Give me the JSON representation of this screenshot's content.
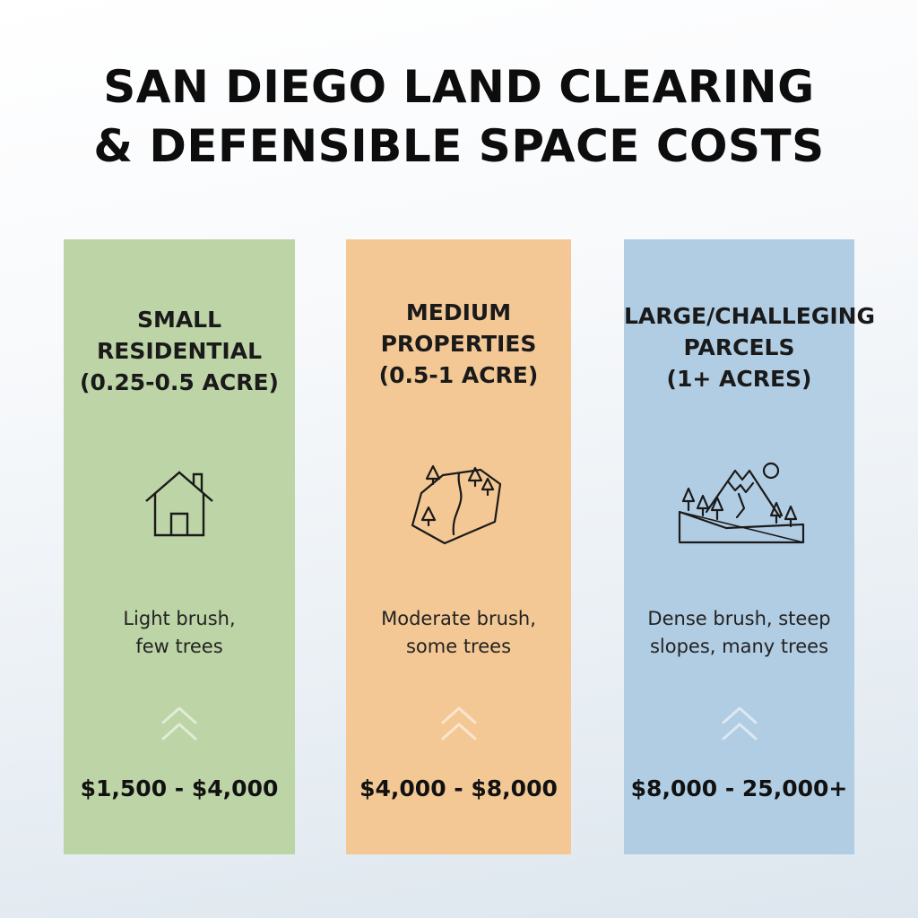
{
  "title": {
    "line1": "SAN DIEGO LAND CLEARING",
    "line2": "& DEFENSIBLE SPACE COSTS"
  },
  "colors": {
    "small_card": "#bdd4a6",
    "medium_card": "#f3c895",
    "large_card": "#b1cde3"
  },
  "tiers": [
    {
      "heading_lines": [
        "SMALL",
        "RESIDENTIAL"
      ],
      "range": "(0.25-0.5 ACRE)",
      "icon": "house-icon",
      "description_lines": [
        "Light brush,",
        "few trees"
      ],
      "price": "$1,500 - $4,000"
    },
    {
      "heading_lines": [
        "MEDIUM",
        "PROPERTIES"
      ],
      "range": "(0.5-1 ACRE)",
      "icon": "land-parcel-icon",
      "description_lines": [
        "Moderate brush,",
        "some trees"
      ],
      "price": "$4,000 - $8,000"
    },
    {
      "heading_lines": [
        "LARGE/CHALLEGING",
        "PARCELS"
      ],
      "range": "(1+ ACRES)",
      "icon": "mountain-slope-icon",
      "description_lines": [
        "Dense brush, steep",
        "slopes, many trees"
      ],
      "price": "$8,000 - 25,000+"
    }
  ]
}
